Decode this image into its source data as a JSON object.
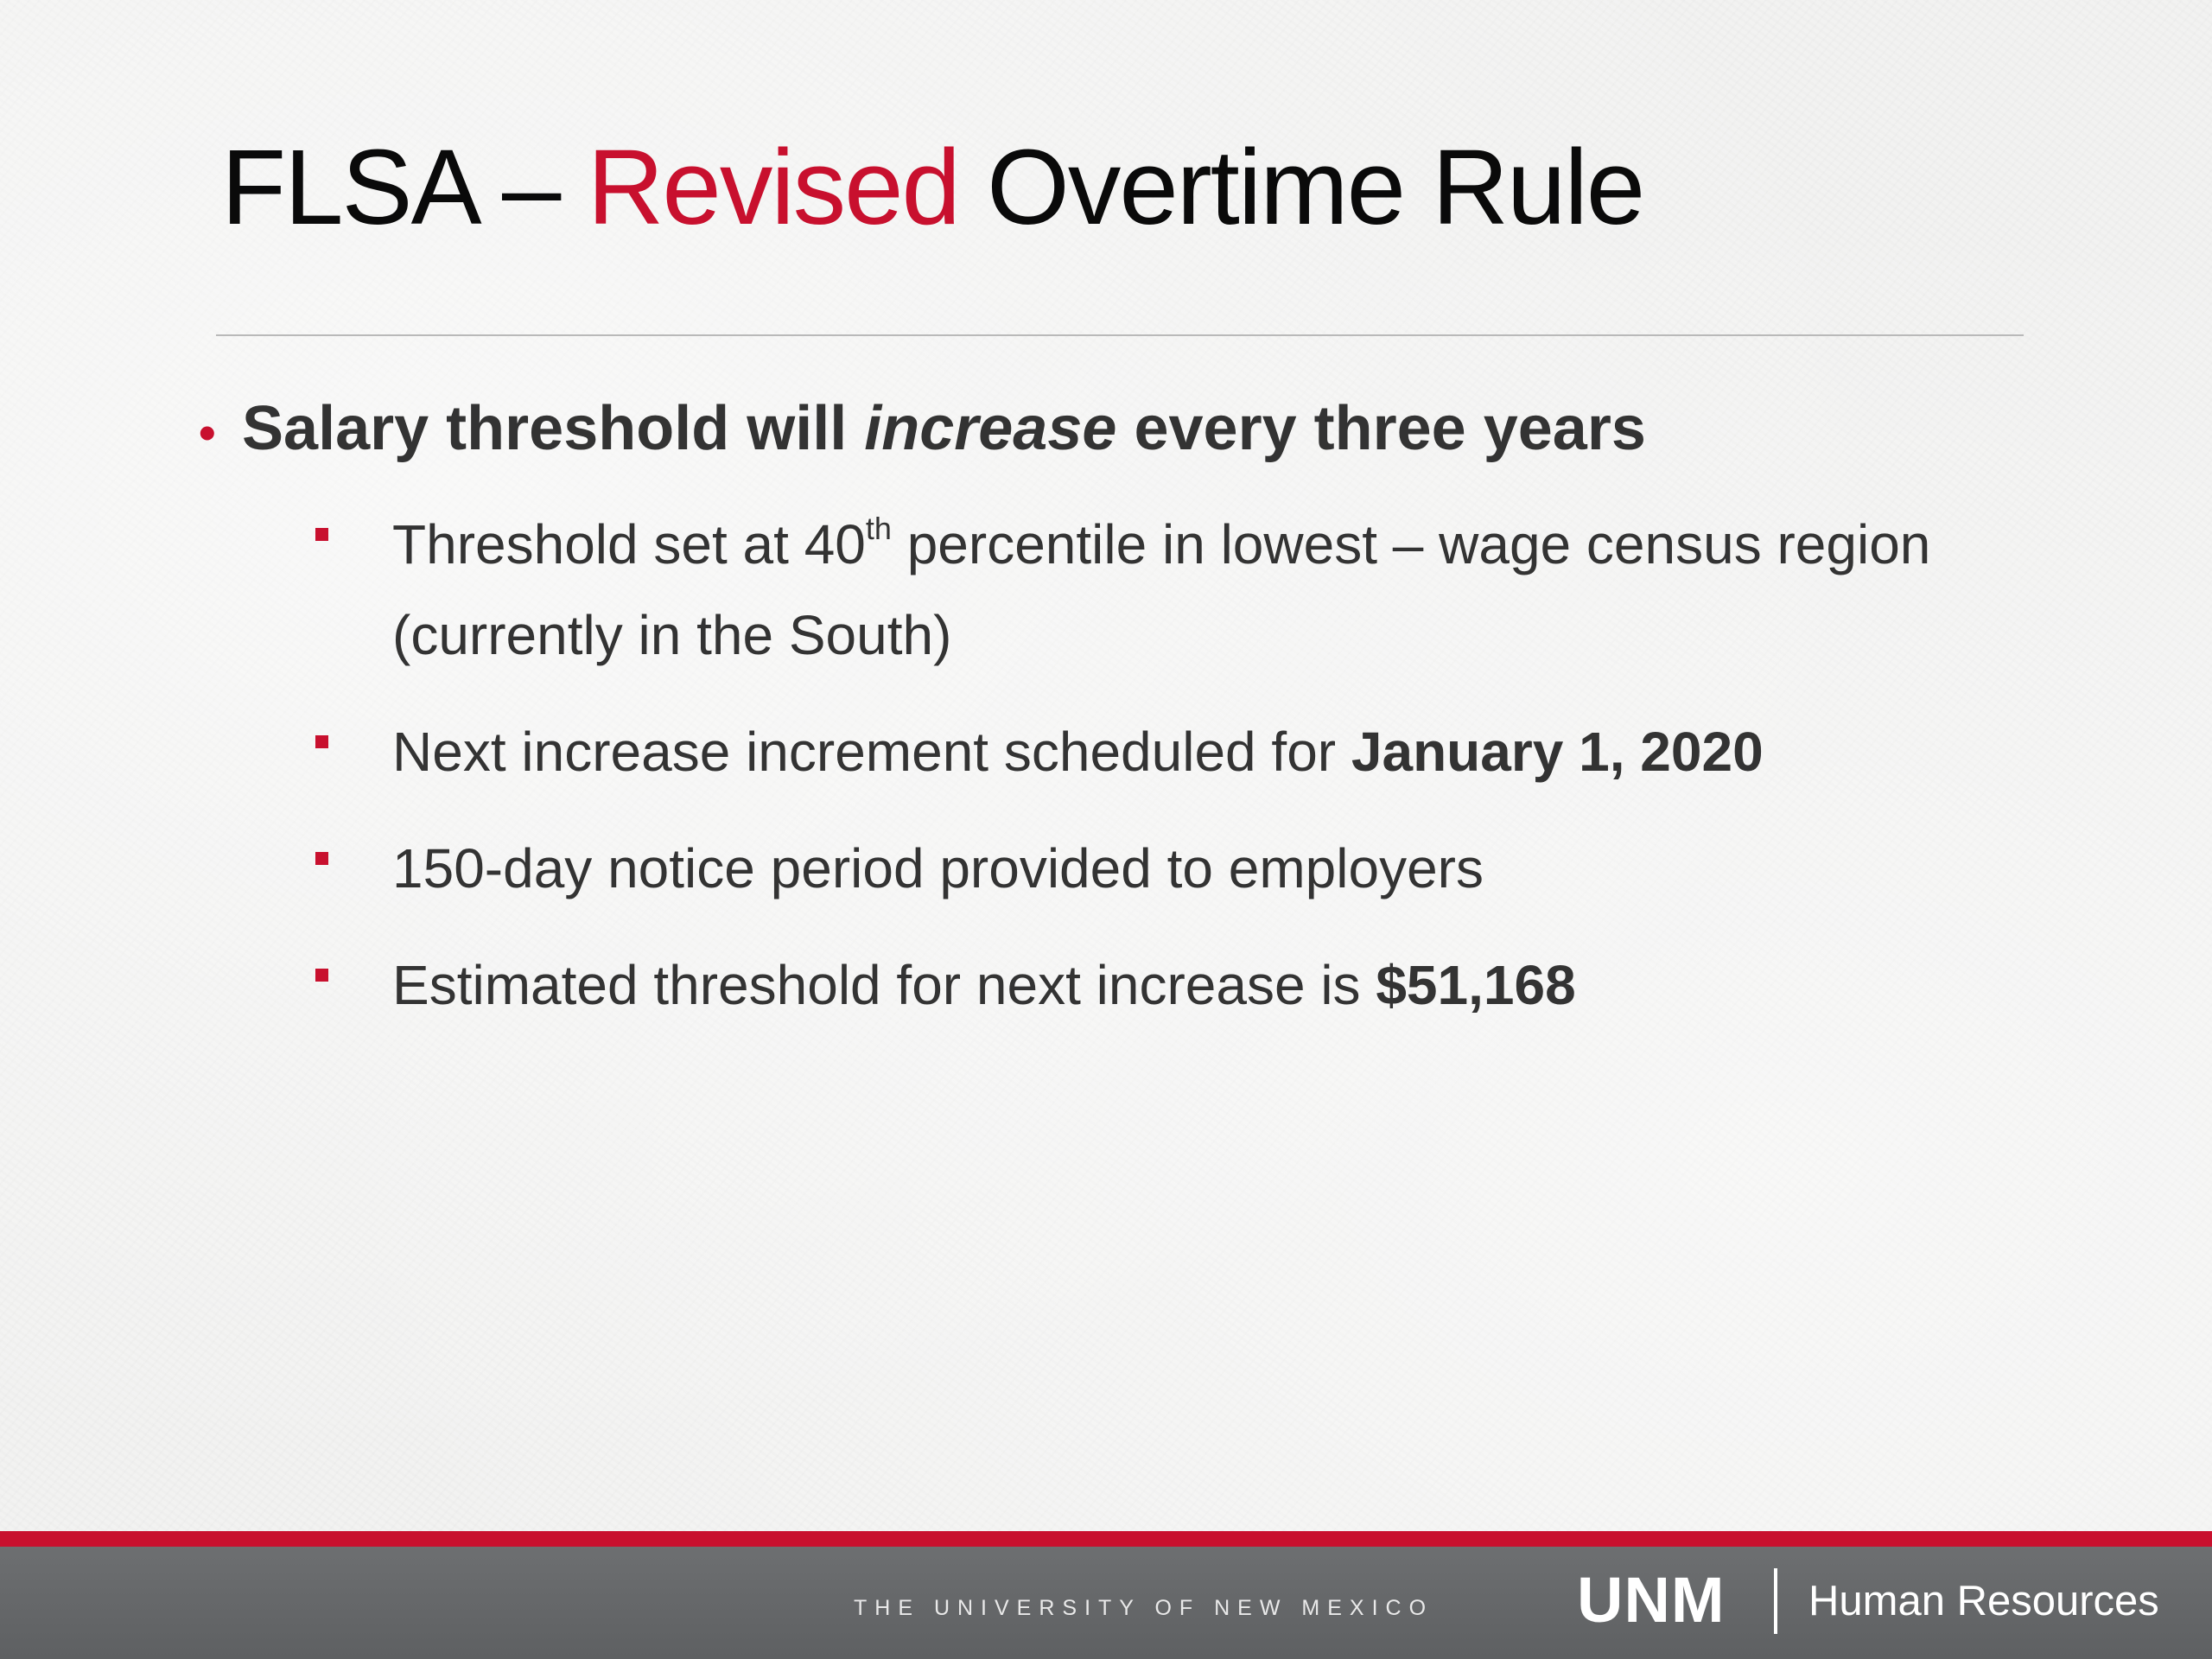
{
  "title": {
    "part1": "FLSA – ",
    "accent": "Revised",
    "part2": " Overtime Rule"
  },
  "main_bullet": {
    "pre": "Salary threshold will ",
    "emph": "increase",
    "post": " every three years"
  },
  "sub_bullets": {
    "b1": {
      "pre": "Threshold set at 40",
      "sup": "th",
      "post": " percentile in lowest – wage census region (currently in the South)"
    },
    "b2": {
      "text": "Next increase increment scheduled for ",
      "bold": "January 1, 2020"
    },
    "b3": {
      "text": "150-day notice period provided to employers"
    },
    "b4": {
      "text": "Estimated threshold for next increase is ",
      "bold": "$51,168"
    }
  },
  "footer": {
    "tagline": "THE UNIVERSITY OF NEW MEXICO",
    "logo": "UNM",
    "dept": "Human Resources"
  },
  "colors": {
    "accent": "#c8102e",
    "footer_bar": "#616365",
    "background": "#f2f2f1"
  }
}
